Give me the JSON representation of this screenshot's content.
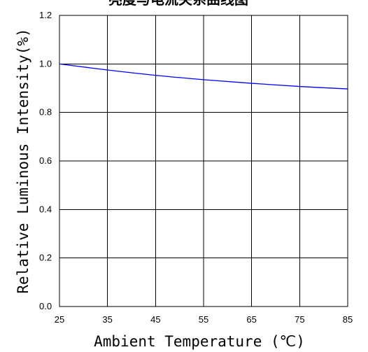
{
  "chart_data": {
    "type": "line",
    "title": "亮度与电流关系曲线图",
    "xlabel": "Ambient Temperature (℃)",
    "ylabel": "Relative Luminous Intensity(%)",
    "xlim": [
      25,
      85
    ],
    "ylim": [
      0.0,
      1.2
    ],
    "xticks": [
      "25",
      "35",
      "45",
      "55",
      "65",
      "75",
      "85"
    ],
    "yticks": [
      "0.0",
      "0.2",
      "0.4",
      "0.6",
      "0.8",
      "1.0",
      "1.2"
    ],
    "grid": true,
    "series": [
      {
        "color": "#0000ff",
        "x": [
          25,
          35,
          45,
          55,
          65,
          75,
          85
        ],
        "y": [
          1.0,
          0.975,
          0.953,
          0.935,
          0.92,
          0.907,
          0.897
        ]
      }
    ]
  }
}
